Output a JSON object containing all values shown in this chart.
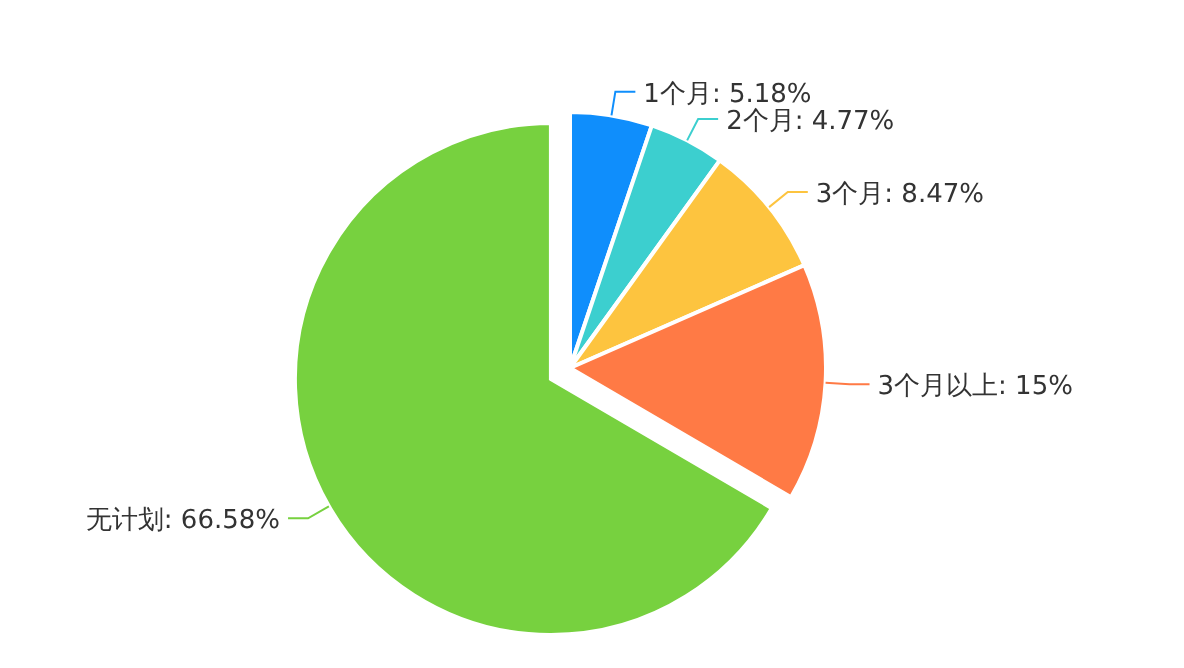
{
  "chart_data": {
    "type": "pie",
    "categories": [
      "1个月",
      "2个月",
      "3个月",
      "3个月以上",
      "无计划"
    ],
    "values": [
      5.18,
      4.77,
      8.47,
      15,
      66.58
    ],
    "colors": [
      "#0f8efc",
      "#3ccfcf",
      "#fdc43f",
      "#ff7a45",
      "#77d13f"
    ],
    "value_labels": [
      "5.18%",
      "4.77%",
      "8.47%",
      "15%",
      "66.58%"
    ]
  }
}
